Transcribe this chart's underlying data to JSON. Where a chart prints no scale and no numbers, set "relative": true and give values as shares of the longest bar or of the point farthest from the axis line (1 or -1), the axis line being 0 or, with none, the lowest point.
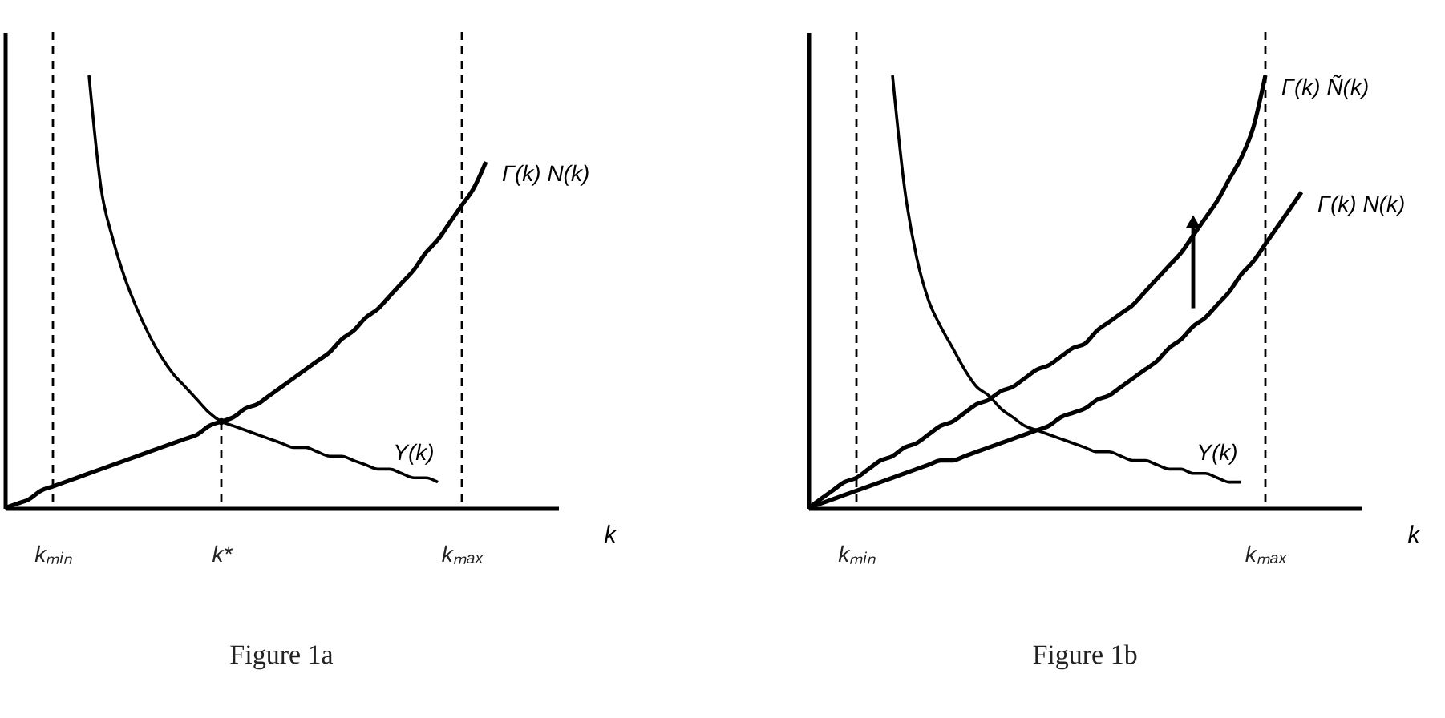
{
  "chart_data": [
    {
      "type": "line",
      "title": "Figure 1a",
      "xlabel": "k",
      "relative": true,
      "categories": [
        null,
        null,
        null,
        null,
        "kₘᵢₙ",
        null,
        null,
        null,
        null,
        null,
        null,
        null,
        null,
        null,
        null,
        null,
        null,
        null,
        "k*",
        null,
        null,
        null,
        null,
        null,
        null,
        null,
        null,
        null,
        null,
        null,
        null,
        null,
        null,
        null,
        null,
        null,
        null,
        null,
        "kₘₐₓ",
        null,
        null,
        null,
        null,
        null,
        null,
        null,
        null
      ],
      "ref_lines": [
        {
          "axis": "x",
          "value": "kₘᵢₙ",
          "line_style": "dashed"
        },
        {
          "axis": "x",
          "value": "kₘₐₓ",
          "line_style": "dashed"
        }
      ],
      "series": [
        {
          "name": "Y(k)",
          "color": "#000000",
          "values": [
            null,
            null,
            null,
            null,
            null,
            null,
            null,
            1,
            0.74,
            0.62,
            0.53,
            0.46,
            0.4,
            0.35,
            0.31,
            0.28,
            0.25,
            0.22,
            0.2,
            0.19,
            0.18,
            0.17,
            0.16,
            0.15,
            0.14,
            0.14,
            0.13,
            0.12,
            0.12,
            0.11,
            0.1,
            0.09,
            0.09,
            0.08,
            0.07,
            0.07,
            0.06,
            null,
            null,
            null,
            null,
            null,
            null,
            null,
            null,
            null,
            null
          ]
        },
        {
          "name": "Γ(k) N(k)",
          "color": "#000000",
          "values": [
            0,
            0.01,
            0.02,
            0.04,
            0.05,
            0.06,
            0.07,
            0.08,
            0.09,
            0.1,
            0.11,
            0.12,
            0.13,
            0.14,
            0.15,
            0.16,
            0.17,
            0.19,
            0.2,
            0.21,
            0.23,
            0.24,
            0.26,
            0.28,
            0.3,
            0.32,
            0.34,
            0.36,
            0.39,
            0.41,
            0.44,
            0.46,
            0.49,
            0.52,
            0.55,
            0.59,
            0.62,
            0.66,
            0.7,
            0.74,
            0.8,
            null,
            null,
            null,
            null,
            null,
            null
          ]
        },
        {
          "type": "lollipop",
          "color": "#000000",
          "line_style": "dashed",
          "values": [
            null,
            null,
            null,
            null,
            null,
            null,
            null,
            null,
            null,
            null,
            null,
            null,
            null,
            null,
            null,
            null,
            null,
            null,
            0.2,
            null,
            null,
            null,
            null,
            null,
            null,
            null,
            null,
            null,
            null,
            null,
            null,
            null,
            null,
            null,
            null,
            null,
            null,
            null,
            null,
            null,
            null,
            null,
            null,
            null,
            null,
            null,
            null
          ]
        }
      ]
    },
    {
      "type": "line",
      "title": "Figure 1b",
      "xlabel": "k",
      "relative": true,
      "categories": [
        null,
        null,
        null,
        null,
        "kₘᵢₙ",
        null,
        null,
        null,
        null,
        null,
        null,
        null,
        null,
        null,
        null,
        null,
        null,
        null,
        null,
        null,
        null,
        null,
        null,
        null,
        null,
        null,
        null,
        null,
        null,
        null,
        null,
        null,
        null,
        null,
        null,
        null,
        null,
        null,
        "kₘₐₓ",
        null,
        null,
        null,
        null,
        null,
        null,
        null,
        null
      ],
      "ref_lines": [
        {
          "axis": "x",
          "value": "kₘᵢₙ",
          "line_style": "dashed"
        },
        {
          "axis": "x",
          "value": "kₘₐₓ",
          "line_style": "dashed"
        }
      ],
      "series": [
        {
          "name": "Y(k)",
          "color": "#000000",
          "values": [
            null,
            null,
            null,
            null,
            null,
            null,
            null,
            1,
            0.74,
            0.58,
            0.48,
            0.42,
            0.37,
            0.32,
            0.28,
            0.26,
            0.23,
            0.21,
            0.19,
            0.18,
            0.17,
            0.16,
            0.15,
            0.14,
            0.13,
            0.13,
            0.12,
            0.11,
            0.11,
            0.1,
            0.09,
            0.09,
            0.08,
            0.08,
            0.07,
            0.06,
            0.06,
            null,
            null,
            null,
            null,
            null,
            null,
            null,
            null,
            null,
            null
          ]
        },
        {
          "name": "Γ(k) Ñ(k)",
          "color": "#000000",
          "values": [
            0,
            0.02,
            0.04,
            0.06,
            0.07,
            0.09,
            0.11,
            0.12,
            0.14,
            0.15,
            0.17,
            0.19,
            0.2,
            0.22,
            0.24,
            0.25,
            0.27,
            0.28,
            0.3,
            0.32,
            0.33,
            0.35,
            0.37,
            0.38,
            0.41,
            0.43,
            0.45,
            0.47,
            0.5,
            0.53,
            0.56,
            0.59,
            0.63,
            0.67,
            0.71,
            0.76,
            0.81,
            0.88,
            1,
            null,
            null,
            null,
            null,
            null,
            null,
            null,
            null
          ]
        },
        {
          "name": "Γ(k) N(k)",
          "color": "#000000",
          "values": [
            0,
            0.01,
            0.02,
            0.03,
            0.04,
            0.05,
            0.06,
            0.07,
            0.08,
            0.09,
            0.1,
            0.11,
            0.11,
            0.12,
            0.13,
            0.14,
            0.15,
            0.16,
            0.17,
            0.18,
            0.19,
            0.21,
            0.22,
            0.23,
            0.25,
            0.26,
            0.28,
            0.3,
            0.32,
            0.34,
            0.37,
            0.39,
            0.42,
            0.44,
            0.47,
            0.5,
            0.54,
            0.57,
            0.61,
            0.65,
            0.69,
            0.73,
            null,
            null,
            null,
            null,
            null
          ]
        }
      ]
    }
  ]
}
